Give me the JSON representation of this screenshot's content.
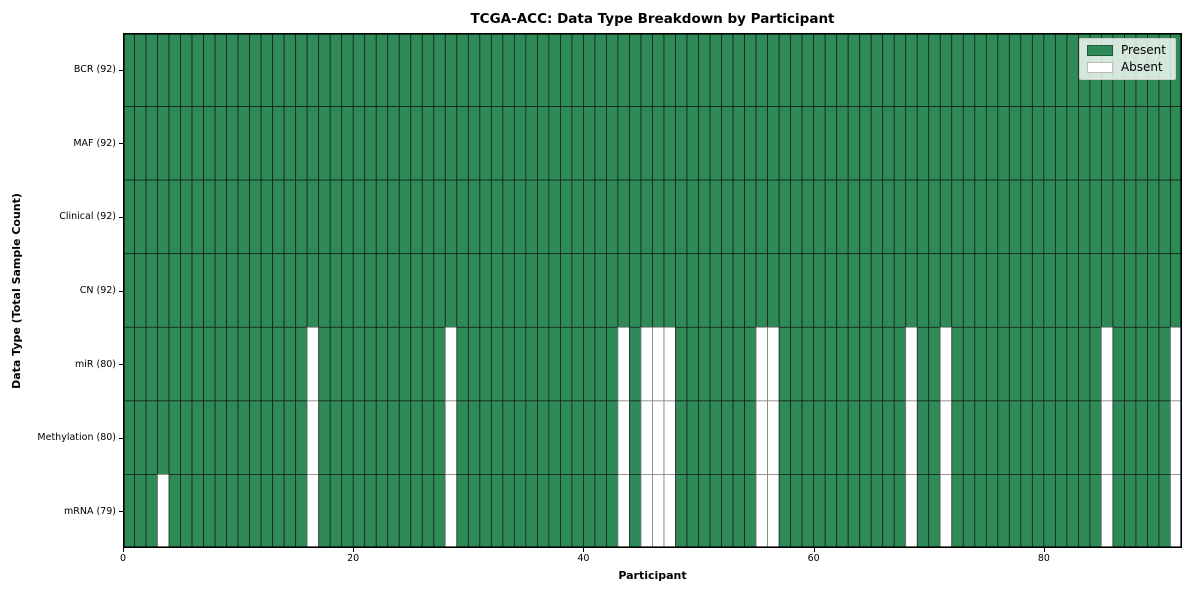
{
  "chart_data": {
    "type": "heatmap",
    "title": "TCGA-ACC: Data Type Breakdown by Participant",
    "xlabel": "Participant",
    "ylabel": "Data Type (Total Sample Count)",
    "n_participants": 92,
    "x_ticks": [
      0,
      20,
      40,
      60,
      80
    ],
    "legend": {
      "position": "upper right",
      "items": [
        {
          "label": "Present",
          "color": "#2e8b57"
        },
        {
          "label": "Absent",
          "color": "#ffffff"
        }
      ]
    },
    "rows": [
      {
        "label": "BCR (92)",
        "data_type": "BCR",
        "total_samples": 92,
        "absent_participants": []
      },
      {
        "label": "MAF (92)",
        "data_type": "MAF",
        "total_samples": 92,
        "absent_participants": []
      },
      {
        "label": "Clinical (92)",
        "data_type": "Clinical",
        "total_samples": 92,
        "absent_participants": []
      },
      {
        "label": "CN (92)",
        "data_type": "CN",
        "total_samples": 92,
        "absent_participants": []
      },
      {
        "label": "miR (80)",
        "data_type": "miR",
        "total_samples": 80,
        "absent_participants": [
          16,
          28,
          43,
          45,
          46,
          47,
          55,
          56,
          68,
          71,
          85,
          91
        ]
      },
      {
        "label": "Methylation (80)",
        "data_type": "Methylation",
        "total_samples": 80,
        "absent_participants": [
          16,
          28,
          43,
          45,
          46,
          47,
          55,
          56,
          68,
          71,
          85,
          91
        ]
      },
      {
        "label": "mRNA (79)",
        "data_type": "mRNA",
        "total_samples": 79,
        "absent_participants": [
          3,
          16,
          28,
          43,
          45,
          46,
          47,
          55,
          56,
          68,
          71,
          85,
          91
        ]
      }
    ],
    "colors": {
      "present": "#2e8b57",
      "absent": "#ffffff",
      "present_edge": "rgba(18,18,18,0.82)",
      "absent_edge": "#808080",
      "spine": "#000000",
      "legend_bg": "rgba(255,255,255,0.8)",
      "legend_border": "#cccccc"
    }
  }
}
